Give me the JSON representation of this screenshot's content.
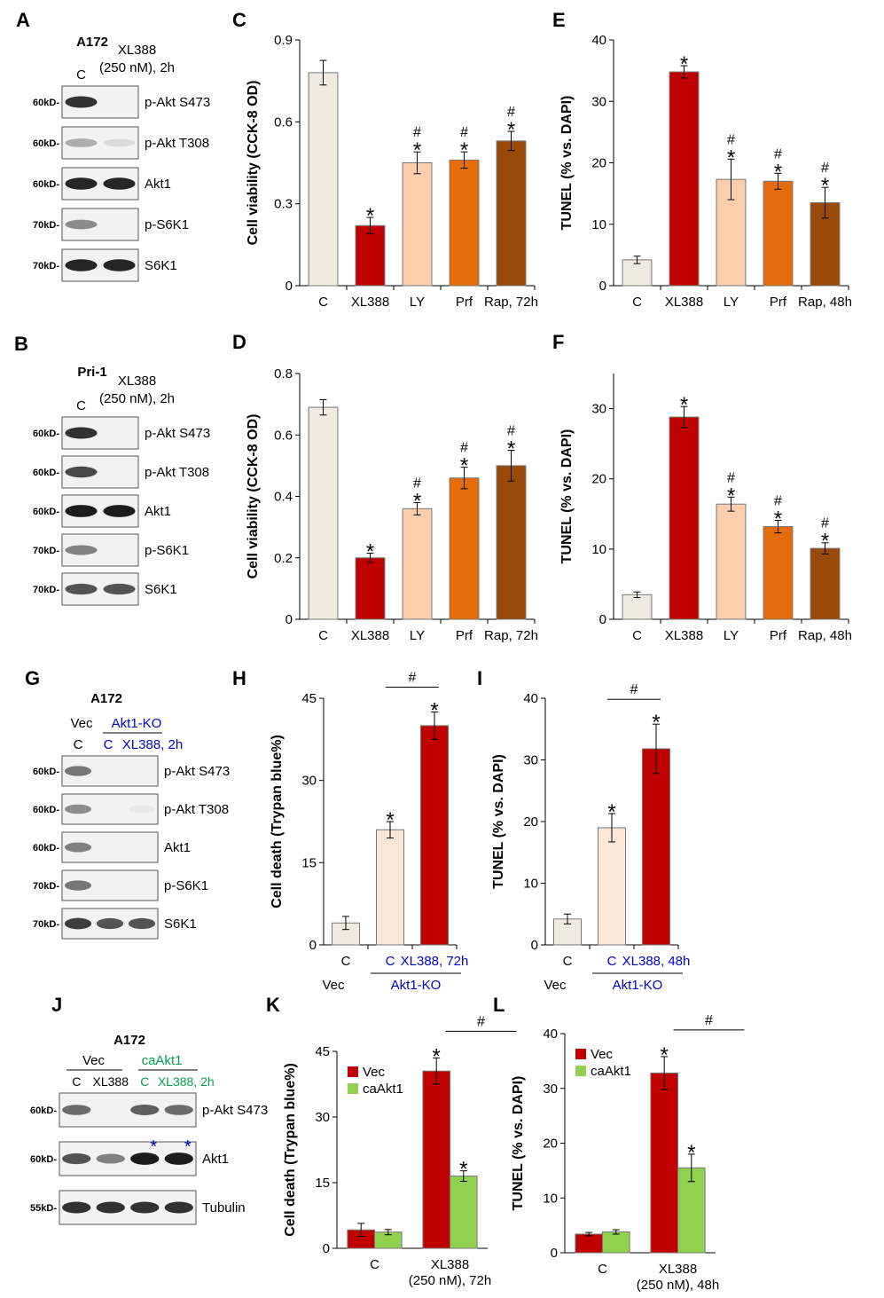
{
  "colors": {
    "control": "#efebe1",
    "xl388": "#c00000",
    "ly": "#fbcfae",
    "prf": "#e46c0a",
    "rap": "#984807",
    "ko_control": "#fde8d8",
    "caakt1": "#92d050",
    "blue_text": "#0000cc",
    "green_text": "#00a050",
    "band_dark": "#101010"
  },
  "labels": [
    "A",
    "B",
    "C",
    "D",
    "E",
    "F",
    "G",
    "H",
    "I",
    "J",
    "K",
    "L"
  ],
  "blots": [
    {
      "id": "A",
      "cell_line": "A172",
      "headers": [
        "C",
        "XL388",
        "(250 nM), 2h"
      ],
      "rows": [
        {
          "kd": "60kD-",
          "label": "p-Akt S473",
          "bands": [
            0.85,
            0.0
          ]
        },
        {
          "kd": "60kD-",
          "label": "p-Akt T308",
          "bands": [
            0.3,
            0.1
          ]
        },
        {
          "kd": "60kD-",
          "label": "Akt1",
          "bands": [
            0.9,
            0.9
          ]
        },
        {
          "kd": "70kD-",
          "label": "p-S6K1",
          "bands": [
            0.45,
            0.0
          ]
        },
        {
          "kd": "70kD-",
          "label": "S6K1",
          "bands": [
            0.9,
            0.9
          ]
        }
      ]
    },
    {
      "id": "B",
      "cell_line": "Pri-1",
      "headers": [
        "C",
        "XL388",
        "(250 nM), 2h"
      ],
      "rows": [
        {
          "kd": "60kD-",
          "label": "p-Akt S473",
          "bands": [
            0.85,
            0.0
          ]
        },
        {
          "kd": "60kD-",
          "label": "p-Akt T308",
          "bands": [
            0.75,
            0.0
          ]
        },
        {
          "kd": "60kD-",
          "label": "Akt1",
          "bands": [
            0.95,
            0.95
          ]
        },
        {
          "kd": "70kD-",
          "label": "p-S6K1",
          "bands": [
            0.5,
            0.0
          ]
        },
        {
          "kd": "70kD-",
          "label": "S6K1",
          "bands": [
            0.7,
            0.7
          ]
        }
      ]
    },
    {
      "id": "G",
      "cell_line": "A172",
      "headers": [
        "Vec",
        "Akt1-KO",
        "C",
        "C",
        "XL388, 2h"
      ],
      "rows": [
        {
          "kd": "60kD-",
          "label": "p-Akt S473",
          "bands": [
            0.55,
            0.0,
            0.0
          ]
        },
        {
          "kd": "60kD-",
          "label": "p-Akt T308",
          "bands": [
            0.45,
            0.0,
            0.05
          ]
        },
        {
          "kd": "60kD-",
          "label": "Akt1",
          "bands": [
            0.5,
            0.0,
            0.0
          ]
        },
        {
          "kd": "70kD-",
          "label": "p-S6K1",
          "bands": [
            0.55,
            0.0,
            0.0
          ]
        },
        {
          "kd": "70kD-",
          "label": "S6K1",
          "bands": [
            0.8,
            0.7,
            0.7
          ]
        }
      ]
    },
    {
      "id": "J",
      "cell_line": "A172",
      "headers": [
        "Vec",
        "caAkt1",
        "C",
        "XL388",
        "C",
        "XL388, 2h"
      ],
      "marker": "*",
      "rows": [
        {
          "kd": "60kD-",
          "label": "p-Akt S473",
          "bands": [
            0.6,
            0.0,
            0.65,
            0.6
          ]
        },
        {
          "kd": "60kD-",
          "label": "Akt1",
          "bands": [
            0.7,
            0.5,
            0.95,
            0.95
          ]
        },
        {
          "kd": "55kD-",
          "label": "Tubulin",
          "bands": [
            0.85,
            0.85,
            0.85,
            0.85
          ]
        }
      ]
    }
  ],
  "chart_data": [
    {
      "id": "C",
      "type": "bar",
      "ylabel": "Cell viability (CCK-8 OD)",
      "ylim": [
        0,
        0.9
      ],
      "yticks": [
        "0",
        "0.3",
        "0.6",
        "0.9"
      ],
      "ytick_values": [
        0,
        0.3,
        0.6,
        0.9
      ],
      "categories": [
        "C",
        "XL388",
        "LY",
        "Prf",
        "Rap, 72h"
      ],
      "values": [
        0.78,
        0.22,
        0.45,
        0.46,
        0.53
      ],
      "errors": [
        0.045,
        0.03,
        0.04,
        0.03,
        0.035
      ],
      "marks": [
        "",
        "*",
        "*#",
        "*#",
        "*#"
      ]
    },
    {
      "id": "D",
      "type": "bar",
      "ylabel": "Cell viability (CCK-8 OD)",
      "ylim": [
        0,
        0.8
      ],
      "yticks": [
        "0",
        "0.2",
        "0.4",
        "0.6",
        "0.8"
      ],
      "ytick_values": [
        0,
        0.2,
        0.4,
        0.6,
        0.8
      ],
      "categories": [
        "C",
        "XL388",
        "LY",
        "Prf",
        "Rap, 72h"
      ],
      "values": [
        0.69,
        0.2,
        0.36,
        0.46,
        0.5
      ],
      "errors": [
        0.025,
        0.015,
        0.02,
        0.035,
        0.05
      ],
      "marks": [
        "",
        "*",
        "*#",
        "*#",
        "*#"
      ]
    },
    {
      "id": "E",
      "type": "bar",
      "ylabel": "TUNEL (% vs. DAPI)",
      "ylim": [
        0,
        40
      ],
      "yticks": [
        "0",
        "10",
        "20",
        "30",
        "40"
      ],
      "ytick_values": [
        0,
        10,
        20,
        30,
        40
      ],
      "categories": [
        "C",
        "XL388",
        "LY",
        "Prf",
        "Rap, 48h"
      ],
      "values": [
        4.2,
        34.8,
        17.3,
        17.0,
        13.5
      ],
      "errors": [
        0.6,
        1.0,
        3.3,
        1.3,
        2.5
      ],
      "marks": [
        "",
        "*",
        "*#",
        "*#",
        "*#"
      ]
    },
    {
      "id": "F",
      "type": "bar",
      "ylabel": "TUNEL (% vs. DAPI)",
      "ylim": [
        0,
        35
      ],
      "yticks": [
        "0",
        "10",
        "20",
        "30"
      ],
      "ytick_values": [
        0,
        10,
        20,
        30
      ],
      "categories": [
        "C",
        "XL388",
        "LY",
        "Prf",
        "Rap, 48h"
      ],
      "values": [
        3.5,
        28.8,
        16.4,
        13.2,
        10.1
      ],
      "errors": [
        0.4,
        1.5,
        1.0,
        0.9,
        0.8
      ],
      "marks": [
        "",
        "*",
        "*#",
        "*#",
        "*#"
      ]
    },
    {
      "id": "H",
      "type": "bar",
      "ylabel": "Cell death (Trypan blue%)",
      "ylim": [
        0,
        45
      ],
      "yticks": [
        "0",
        "15",
        "30",
        "45"
      ],
      "ytick_values": [
        0,
        15,
        30,
        45
      ],
      "categories": [
        "C",
        "C",
        "XL388, 72h"
      ],
      "values": [
        4.0,
        21.0,
        40.0
      ],
      "errors": [
        1.2,
        1.5,
        2.5
      ],
      "marks": [
        "",
        "*",
        "*"
      ],
      "group_labels": [
        "Vec",
        "Akt1-KO"
      ],
      "bracket": "#"
    },
    {
      "id": "I",
      "type": "bar",
      "ylabel": "TUNEL (% vs. DAPI)",
      "ylim": [
        0,
        40
      ],
      "yticks": [
        "0",
        "10",
        "20",
        "30",
        "40"
      ],
      "ytick_values": [
        0,
        10,
        20,
        30,
        40
      ],
      "categories": [
        "C",
        "C",
        "XL388, 48h"
      ],
      "values": [
        4.2,
        19.0,
        31.8
      ],
      "errors": [
        0.8,
        2.3,
        4.0
      ],
      "marks": [
        "",
        "*",
        "*"
      ],
      "group_labels": [
        "Vec",
        "Akt1-KO"
      ],
      "bracket": "#"
    },
    {
      "id": "K",
      "type": "bar",
      "ylabel": "Cell death (Trypan blue%)",
      "ylim": [
        0,
        45
      ],
      "yticks": [
        "0",
        "15",
        "30",
        "45"
      ],
      "ytick_values": [
        0,
        15,
        30,
        45
      ],
      "categories": [
        "C",
        "XL388\n(250 nM), 72h"
      ],
      "series": [
        {
          "name": "Vec",
          "values": [
            4.2,
            40.5
          ],
          "errors": [
            1.5,
            3.0
          ],
          "marks": [
            "",
            "*"
          ]
        },
        {
          "name": "caAkt1",
          "values": [
            3.7,
            16.5
          ],
          "errors": [
            0.6,
            1.2
          ],
          "marks": [
            "",
            "*"
          ]
        }
      ],
      "bracket": "#"
    },
    {
      "id": "L",
      "type": "bar",
      "ylabel": "TUNEL (% vs. DAPI)",
      "ylim": [
        0,
        40
      ],
      "yticks": [
        "0",
        "10",
        "20",
        "30",
        "40"
      ],
      "ytick_values": [
        0,
        10,
        20,
        30,
        40
      ],
      "categories": [
        "C",
        "XL388\n(250 nM), 48h"
      ],
      "series": [
        {
          "name": "Vec",
          "values": [
            3.4,
            32.8
          ],
          "errors": [
            0.3,
            3.0
          ],
          "marks": [
            "",
            "*"
          ]
        },
        {
          "name": "caAkt1",
          "values": [
            3.8,
            15.5
          ],
          "errors": [
            0.4,
            2.5
          ],
          "marks": [
            "",
            "*"
          ]
        }
      ],
      "bracket": "#"
    }
  ]
}
